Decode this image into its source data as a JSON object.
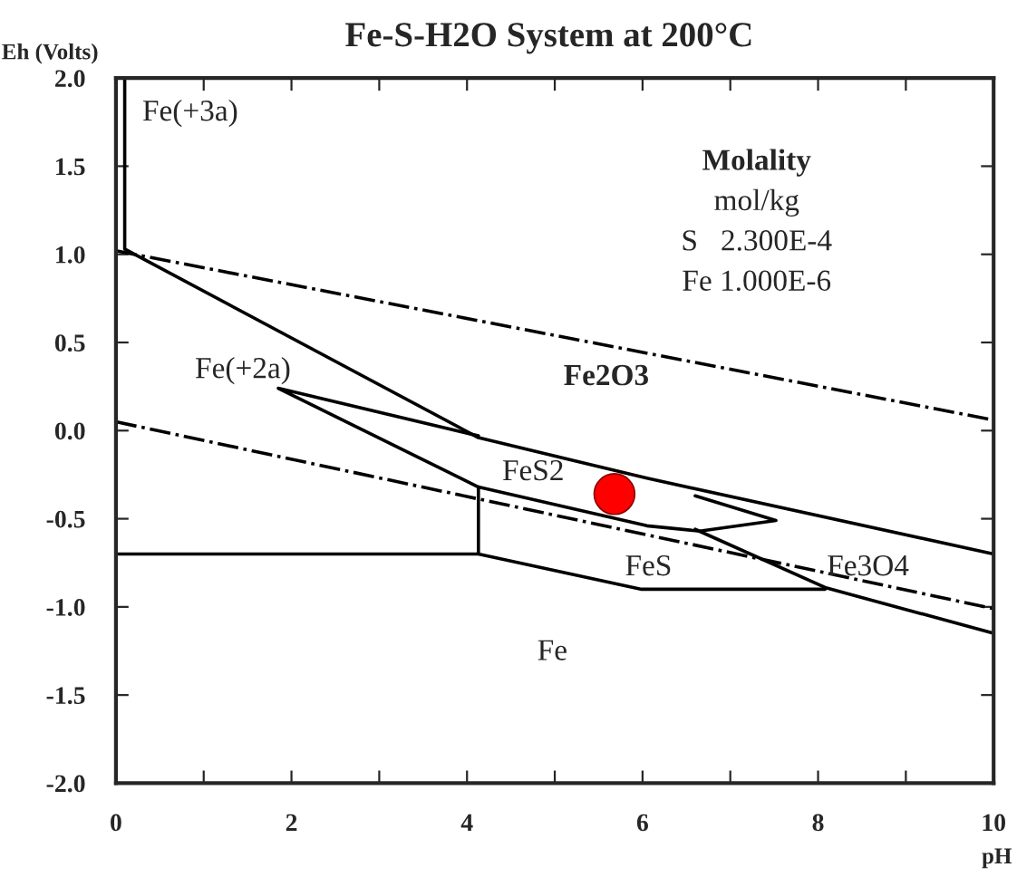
{
  "chart_data": {
    "type": "line",
    "title": "Fe-S-H2O System at 200°C",
    "xlabel": "pH",
    "ylabel": "Eh (Volts)",
    "xlim": [
      0,
      10
    ],
    "ylim": [
      -2.0,
      2.0
    ],
    "xticks": [
      {
        "value": 0,
        "label": "0"
      },
      {
        "value": 1,
        "label": null
      },
      {
        "value": 2,
        "label": "2"
      },
      {
        "value": 3,
        "label": null
      },
      {
        "value": 4,
        "label": "4"
      },
      {
        "value": 5,
        "label": null
      },
      {
        "value": 6,
        "label": "6"
      },
      {
        "value": 7,
        "label": null
      },
      {
        "value": 8,
        "label": "8"
      },
      {
        "value": 9,
        "label": null
      },
      {
        "value": 10,
        "label": "10"
      }
    ],
    "yticks": [
      {
        "value": -2.0,
        "label": "-2.0"
      },
      {
        "value": -1.5,
        "label": "-1.5"
      },
      {
        "value": -1.0,
        "label": "-1.0"
      },
      {
        "value": -0.5,
        "label": "-0.5"
      },
      {
        "value": 0.0,
        "label": "0.0"
      },
      {
        "value": 0.5,
        "label": "0.5"
      },
      {
        "value": 1.0,
        "label": "1.0"
      },
      {
        "value": 1.5,
        "label": "1.5"
      },
      {
        "value": 2.0,
        "label": "2.0"
      }
    ],
    "grid": false,
    "legend": false,
    "marker": "none",
    "series": [
      {
        "color": "#000000",
        "line_style": "dashdot",
        "x": [
          0,
          10
        ],
        "values": [
          1.02,
          0.06
        ]
      },
      {
        "color": "#000000",
        "line_style": "dashdot",
        "x": [
          0,
          10
        ],
        "values": [
          0.05,
          -1.01
        ]
      },
      {
        "color": "#000000",
        "line_style": "solid",
        "x": [
          0.1,
          0.1,
          4.13,
          6.05,
          10
        ],
        "values": [
          2.0,
          1.03,
          -0.04,
          -0.27,
          -0.7
        ]
      },
      {
        "color": "#000000",
        "line_style": "solid",
        "x": [
          4.13,
          1.85,
          4.13,
          6.05,
          6.65,
          7.52,
          6.6
        ],
        "values": [
          -0.03,
          0.24,
          -0.32,
          -0.54,
          -0.57,
          -0.51,
          -0.37
        ]
      },
      {
        "color": "#000000",
        "line_style": "solid",
        "x": [
          6.6,
          8.08,
          10
        ],
        "values": [
          -0.56,
          -0.89,
          -1.15
        ]
      },
      {
        "color": "#000000",
        "line_style": "solid",
        "x": [
          4.13,
          4.13
        ],
        "values": [
          -0.32,
          -0.7
        ]
      },
      {
        "color": "#000000",
        "line_style": "solid",
        "x": [
          0,
          4.13,
          5.99,
          8.08
        ],
        "values": [
          -0.7,
          -0.7,
          -0.9,
          -0.9
        ]
      },
      {
        "type": "scatter",
        "color": "#ff0000",
        "marker": "circle",
        "x": [
          5.68
        ],
        "values": [
          -0.36
        ]
      }
    ],
    "annotations": [
      "Molality",
      "mol/kg",
      "S   2.300E-4",
      "Fe 1.000E-6",
      "Fe(+3a)",
      "Fe(+2a)",
      "Fe2O3",
      "FeS2",
      "FeS",
      "Fe3O4",
      "Fe"
    ]
  }
}
